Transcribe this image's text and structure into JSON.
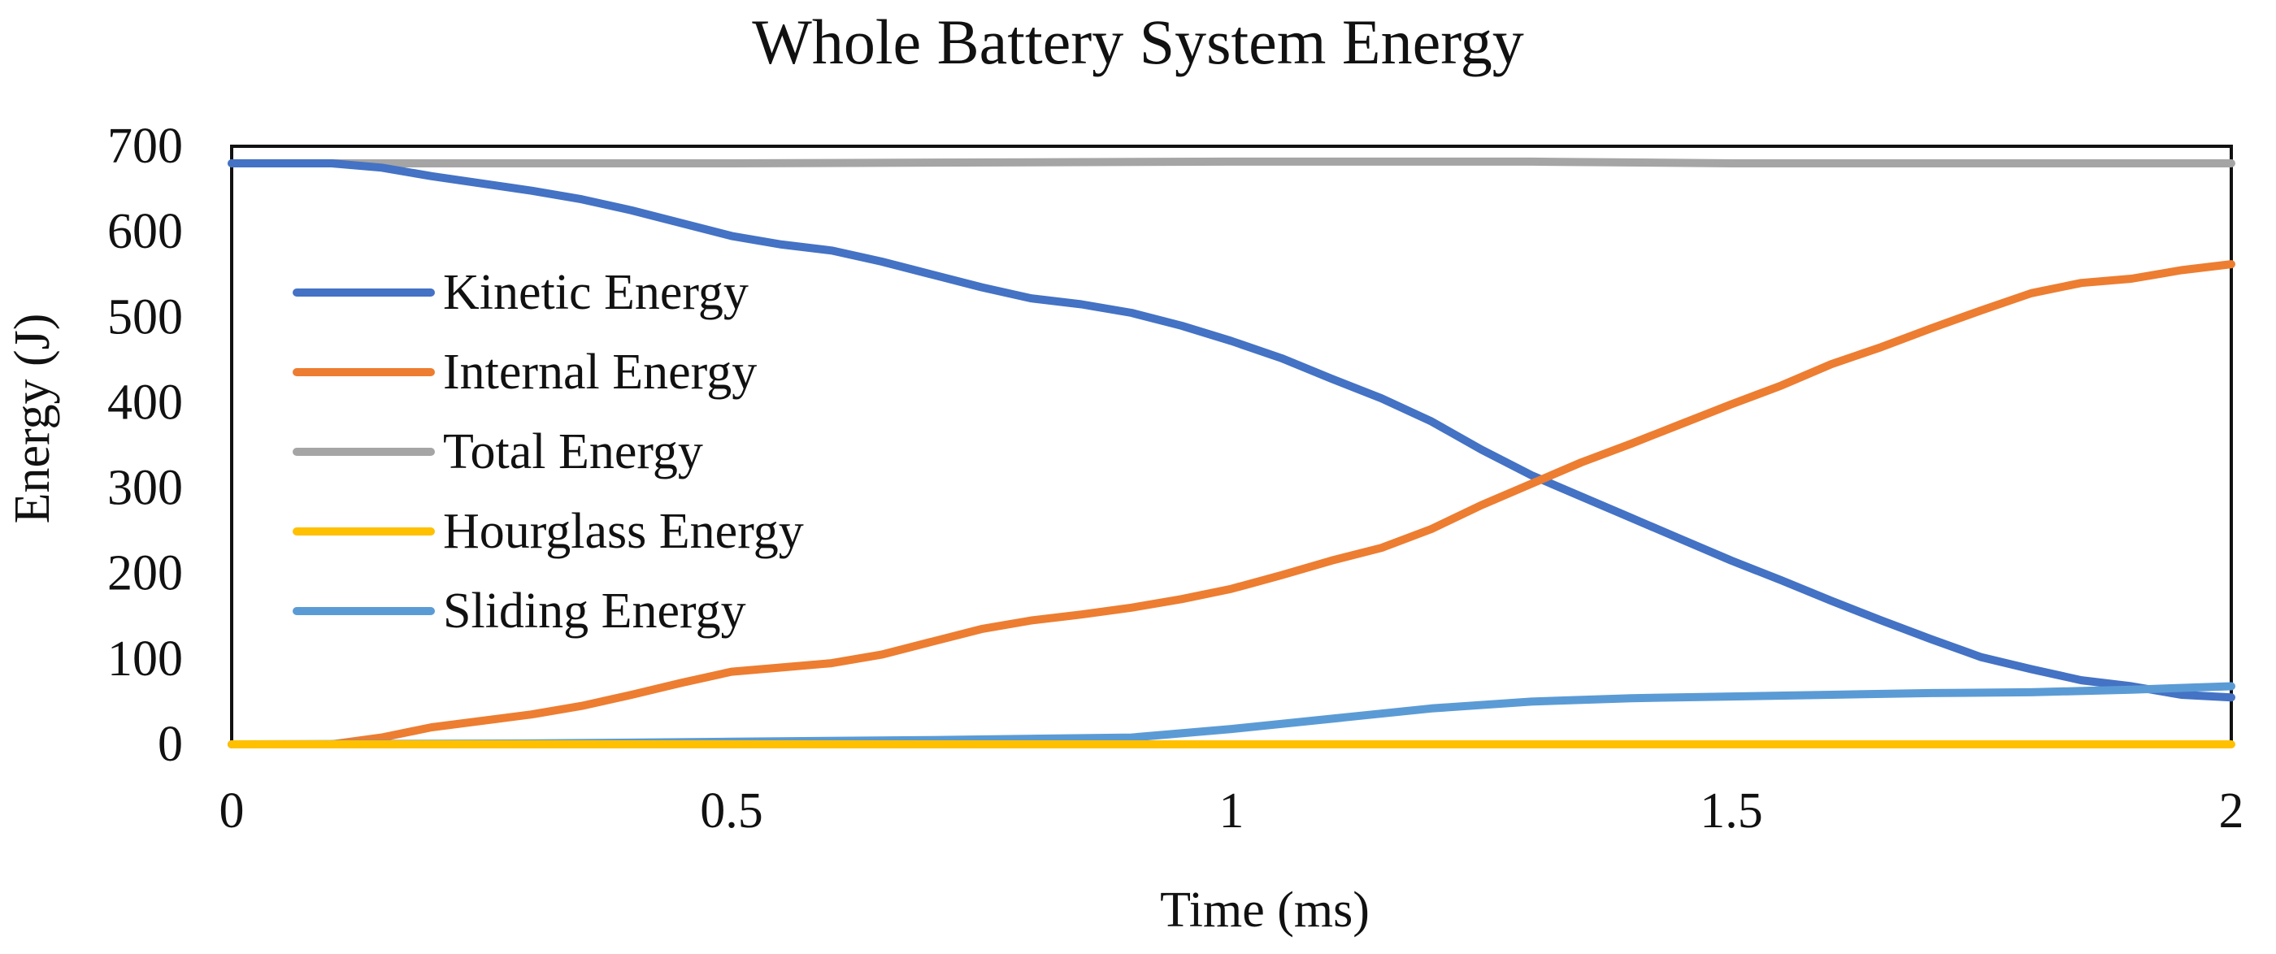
{
  "chart_data": {
    "type": "line",
    "title": "Whole Battery System Energy",
    "xlabel": "Time (ms)",
    "ylabel": "Energy (J)",
    "xlim": [
      0,
      2
    ],
    "ylim": [
      0,
      700
    ],
    "xticks": [
      0,
      0.5,
      1,
      1.5,
      2
    ],
    "xtick_labels": [
      "0",
      "0.5",
      "1",
      "1.5",
      "2"
    ],
    "yticks": [
      0,
      100,
      200,
      300,
      400,
      500,
      600,
      700
    ],
    "ytick_labels": [
      "0",
      "100",
      "200",
      "300",
      "400",
      "500",
      "600",
      "700"
    ],
    "grid": false,
    "legend_position": "left",
    "series": [
      {
        "name": "Kinetic Energy",
        "color": "#4472C4",
        "x": [
          0,
          0.1,
          0.15,
          0.2,
          0.3,
          0.35,
          0.4,
          0.45,
          0.5,
          0.55,
          0.6,
          0.65,
          0.7,
          0.75,
          0.8,
          0.85,
          0.9,
          0.95,
          1.0,
          1.05,
          1.1,
          1.15,
          1.2,
          1.25,
          1.3,
          1.35,
          1.4,
          1.45,
          1.5,
          1.55,
          1.6,
          1.65,
          1.7,
          1.75,
          1.8,
          1.85,
          1.9,
          1.95,
          2.0
        ],
        "values": [
          680,
          680,
          675,
          665,
          648,
          638,
          625,
          610,
          595,
          585,
          578,
          565,
          550,
          535,
          522,
          515,
          505,
          490,
          472,
          452,
          428,
          405,
          378,
          345,
          315,
          290,
          265,
          240,
          215,
          192,
          168,
          145,
          123,
          102,
          88,
          75,
          68,
          58,
          55
        ]
      },
      {
        "name": "Internal Energy",
        "color": "#ED7D31",
        "x": [
          0,
          0.1,
          0.15,
          0.2,
          0.3,
          0.35,
          0.4,
          0.45,
          0.5,
          0.55,
          0.6,
          0.65,
          0.7,
          0.75,
          0.8,
          0.85,
          0.9,
          0.95,
          1.0,
          1.05,
          1.1,
          1.15,
          1.2,
          1.25,
          1.3,
          1.35,
          1.4,
          1.45,
          1.5,
          1.55,
          1.6,
          1.65,
          1.7,
          1.75,
          1.8,
          1.85,
          1.9,
          1.95,
          2.0
        ],
        "values": [
          0,
          0,
          8,
          20,
          35,
          45,
          58,
          72,
          85,
          90,
          95,
          105,
          120,
          135,
          145,
          152,
          160,
          170,
          182,
          198,
          215,
          230,
          252,
          280,
          305,
          330,
          352,
          375,
          398,
          420,
          445,
          465,
          487,
          508,
          528,
          540,
          545,
          555,
          562
        ]
      },
      {
        "name": "Total Energy",
        "color": "#A5A5A5",
        "x": [
          0,
          0.5,
          1.0,
          1.3,
          1.5,
          2.0
        ],
        "values": [
          680,
          680,
          682,
          682,
          680,
          680
        ]
      },
      {
        "name": "Hourglass Energy",
        "color": "#FFC000",
        "x": [
          0,
          0.5,
          1.0,
          1.5,
          2.0
        ],
        "values": [
          0,
          0,
          0,
          0,
          0
        ]
      },
      {
        "name": "Sliding Energy",
        "color": "#5B9BD5",
        "x": [
          0,
          0.3,
          0.5,
          0.7,
          0.9,
          1.0,
          1.1,
          1.2,
          1.3,
          1.4,
          1.5,
          1.6,
          1.7,
          1.8,
          1.9,
          2.0
        ],
        "values": [
          0,
          1,
          3,
          5,
          8,
          18,
          30,
          42,
          50,
          54,
          56,
          58,
          60,
          61,
          64,
          68
        ]
      }
    ]
  }
}
